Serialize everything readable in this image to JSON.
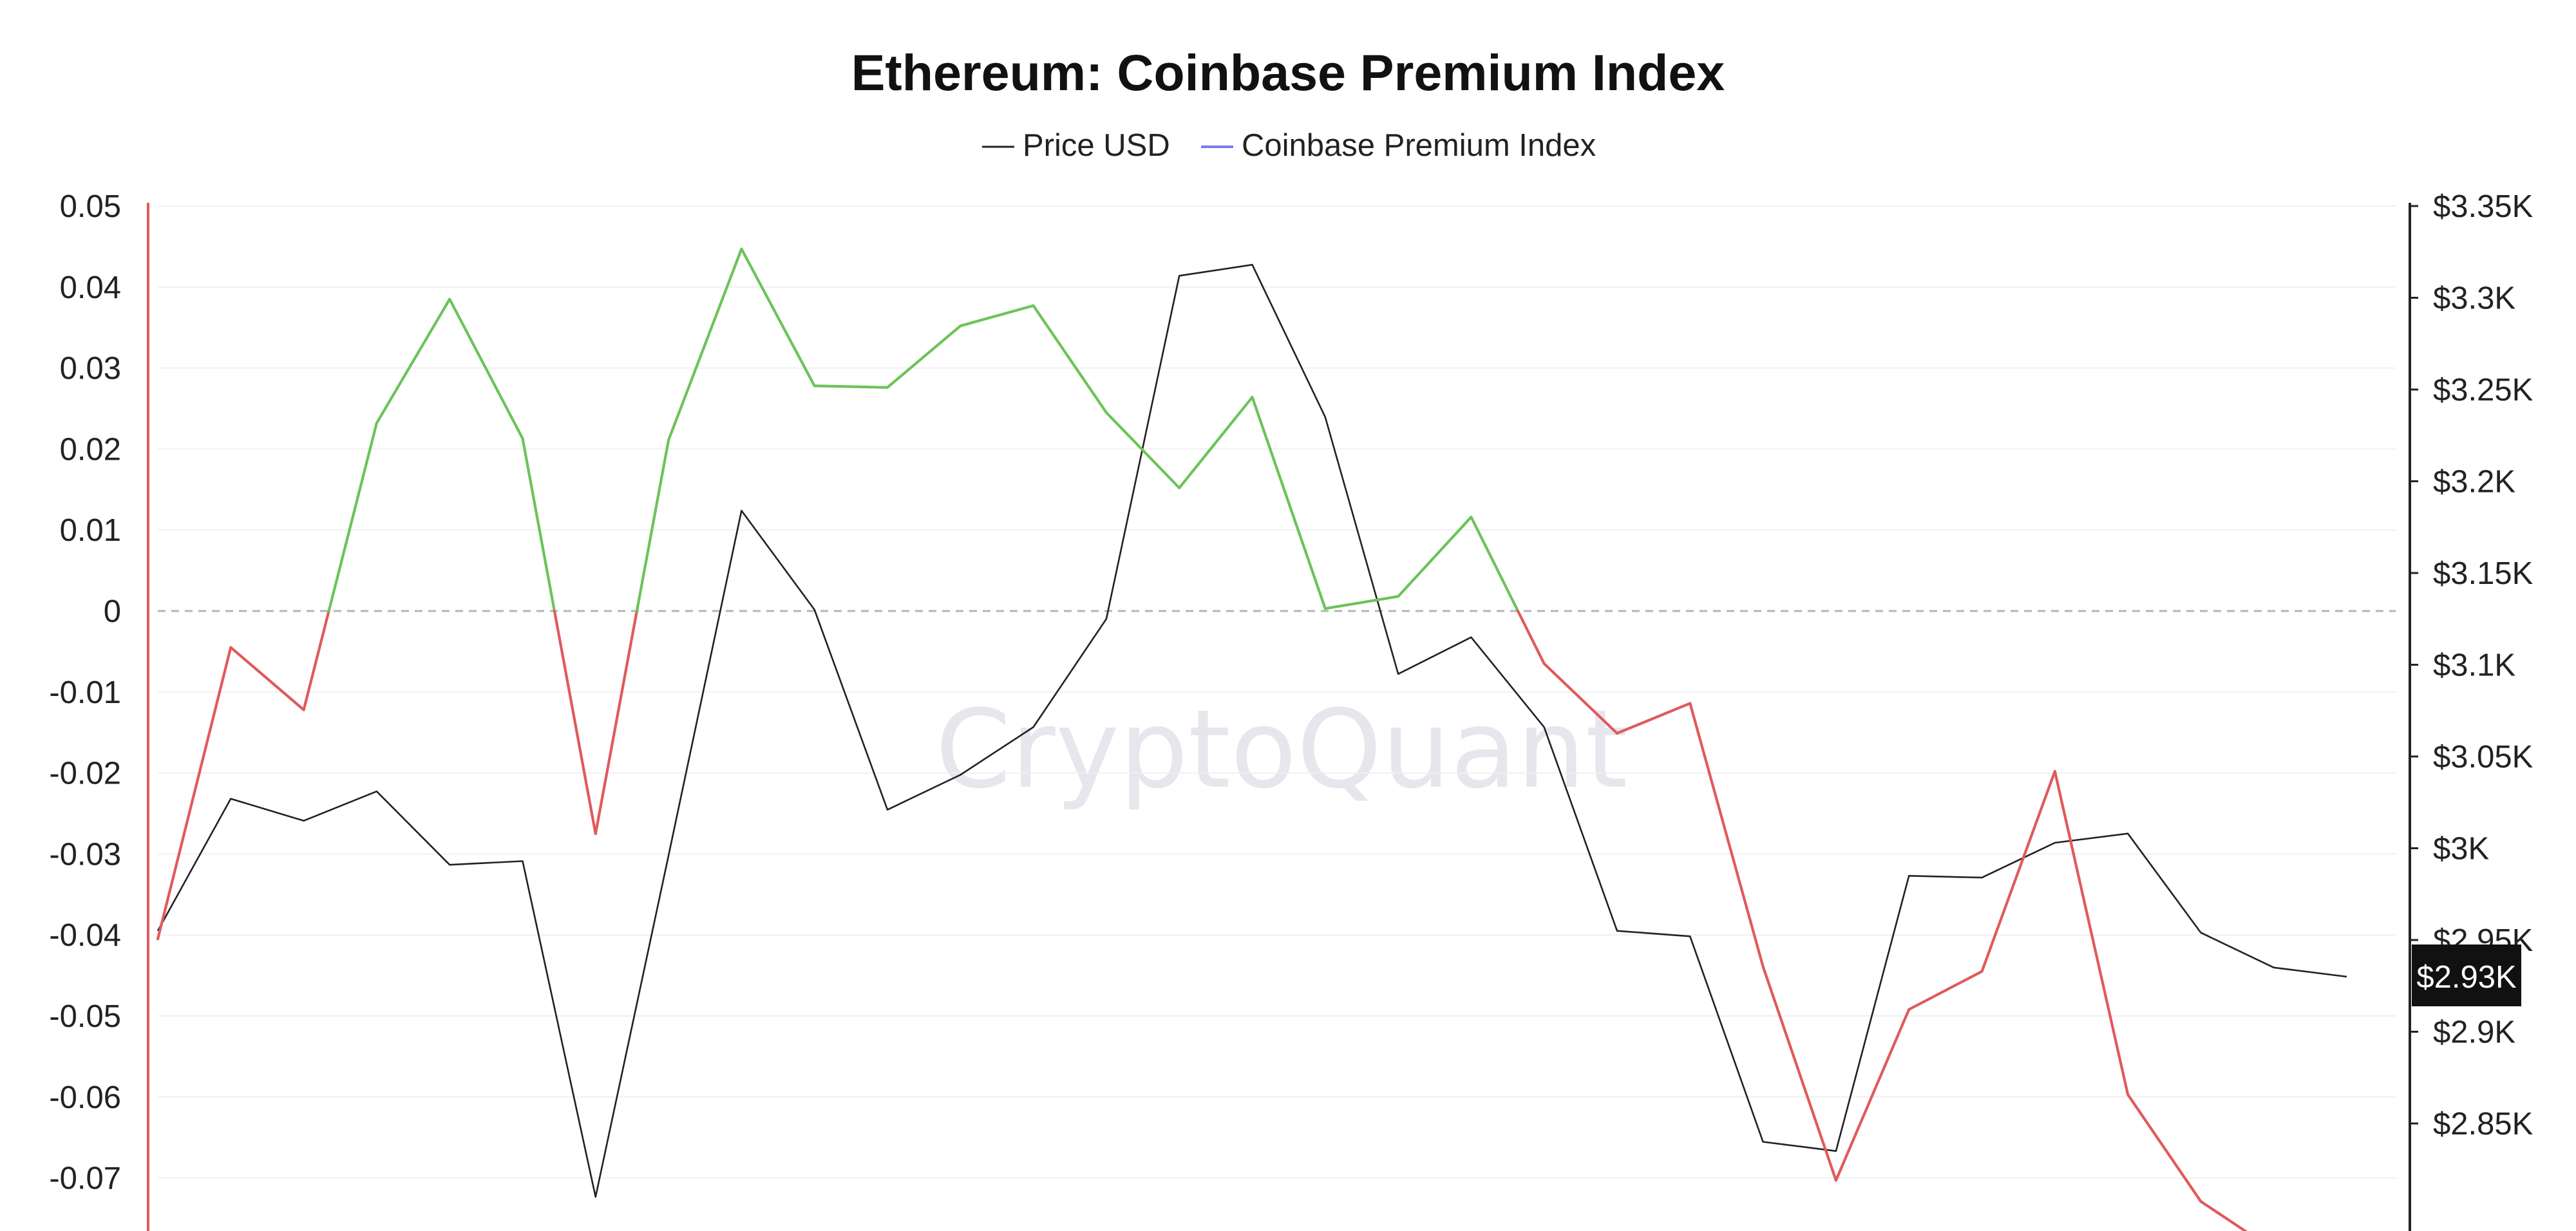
{
  "chart_data": {
    "type": "line",
    "title": "Ethereum: Coinbase Premium Index",
    "legend": [
      {
        "label": "Price USD",
        "color": "#222222"
      },
      {
        "label": "Coinbase Premium Index",
        "color": "#7b7bf0"
      }
    ],
    "legend_placement": "top-center",
    "watermark": "CryptoQuant",
    "y_left": {
      "ticks": [
        "0.05",
        "0.04",
        "0.03",
        "0.02",
        "0.01",
        "0",
        "-0.01",
        "-0.02",
        "-0.03",
        "-0.04",
        "-0.05",
        "-0.06",
        "-0.07"
      ],
      "tick_values": [
        0.05,
        0.04,
        0.03,
        0.02,
        0.01,
        0,
        -0.01,
        -0.02,
        -0.03,
        -0.04,
        -0.05,
        -0.06,
        -0.07
      ],
      "range": [
        -0.0775,
        0.05
      ]
    },
    "y_right": {
      "ticks": [
        "$3.35K",
        "$3.3K",
        "$3.25K",
        "$3.2K",
        "$3.15K",
        "$3.1K",
        "$3.05K",
        "$3K",
        "$2.95K",
        "$2.9K",
        "$2.85K"
      ],
      "tick_values": [
        3350,
        3300,
        3250,
        3200,
        3150,
        3100,
        3050,
        3000,
        2950,
        2900,
        2850
      ],
      "range": [
        2825,
        3350
      ]
    },
    "grid": true,
    "zero_line": "dashed",
    "positive_color": "#6cc35a",
    "negative_color": "#e05a5a",
    "current_price_label": "$2.93K",
    "current_price_value": 2930,
    "series": [
      {
        "name": "Price USD",
        "color": "#222222",
        "axis": "right",
        "values": [
          2955,
          3027,
          3015,
          3031,
          2991,
          2993,
          2810,
          2996,
          3184,
          3130,
          3021,
          3040,
          3066,
          3125,
          3312,
          3318,
          3235,
          3095,
          3115,
          3066,
          2955,
          2952,
          2840,
          2835,
          2985,
          2984,
          3003,
          3008,
          2954,
          2935,
          2930
        ]
      },
      {
        "name": "Coinbase Premium Index",
        "color": "#7b7bf0",
        "axis": "left",
        "values": [
          -0.0405,
          -0.0045,
          -0.0122,
          0.0232,
          0.0385,
          0.0213,
          -0.0275,
          0.0211,
          0.0447,
          0.0278,
          0.0276,
          0.0352,
          0.0377,
          0.0245,
          0.0152,
          0.0264,
          0.0003,
          0.0018,
          0.0116,
          -0.0065,
          -0.0151,
          -0.0114,
          -0.0439,
          -0.0703,
          -0.0492,
          -0.0445,
          -0.0198,
          -0.0597,
          -0.0729,
          -0.0789
        ]
      }
    ]
  }
}
